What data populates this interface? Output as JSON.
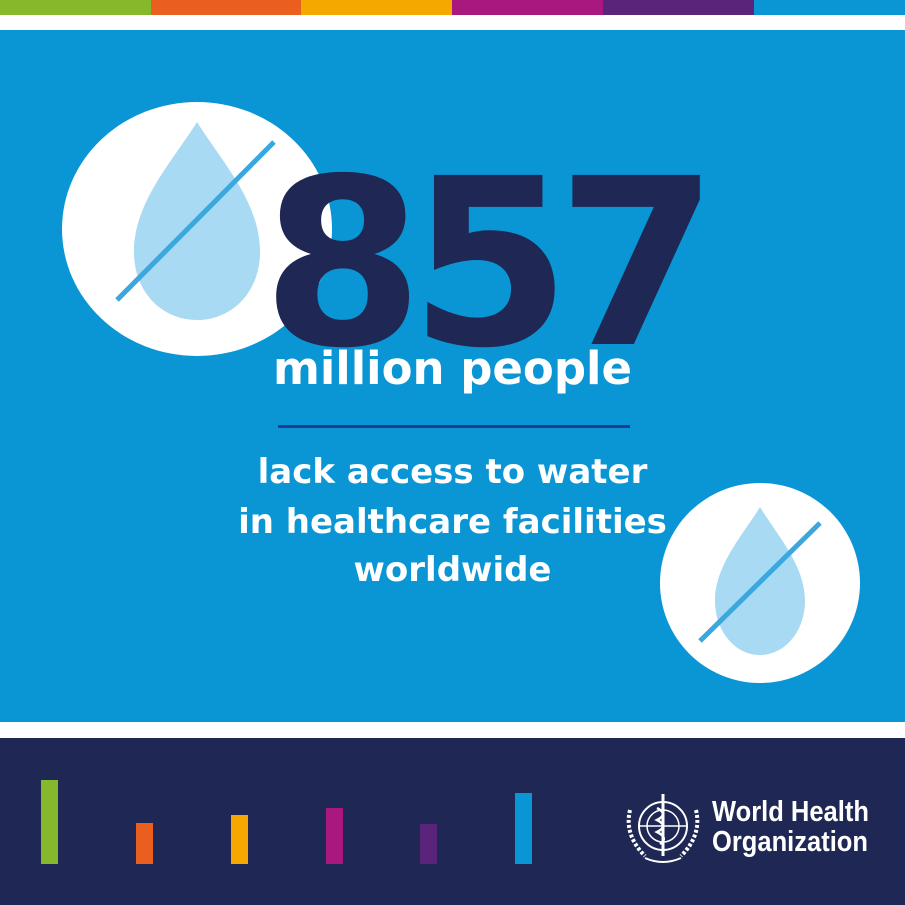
{
  "stripe_colors": [
    "#86b82c",
    "#ea5e1f",
    "#f5a800",
    "#a8187f",
    "#5b247b",
    "#0a95d4"
  ],
  "colors": {
    "background": "#0a95d4",
    "number": "#1f2754",
    "footer": "#1f2754",
    "divider": "#1e3f8f",
    "drop": "#a8daf3",
    "slash": "#3aa7de"
  },
  "headline": {
    "number": "857",
    "unit": "million people"
  },
  "description": [
    "lack access to water",
    "in healthcare facilities",
    "worldwide"
  ],
  "icons": [
    "no-water-drop-icon",
    "no-water-drop-icon"
  ],
  "footer": {
    "org_name_line1": "World Health",
    "org_name_line2": "Organization",
    "logo": "who-emblem-icon"
  }
}
